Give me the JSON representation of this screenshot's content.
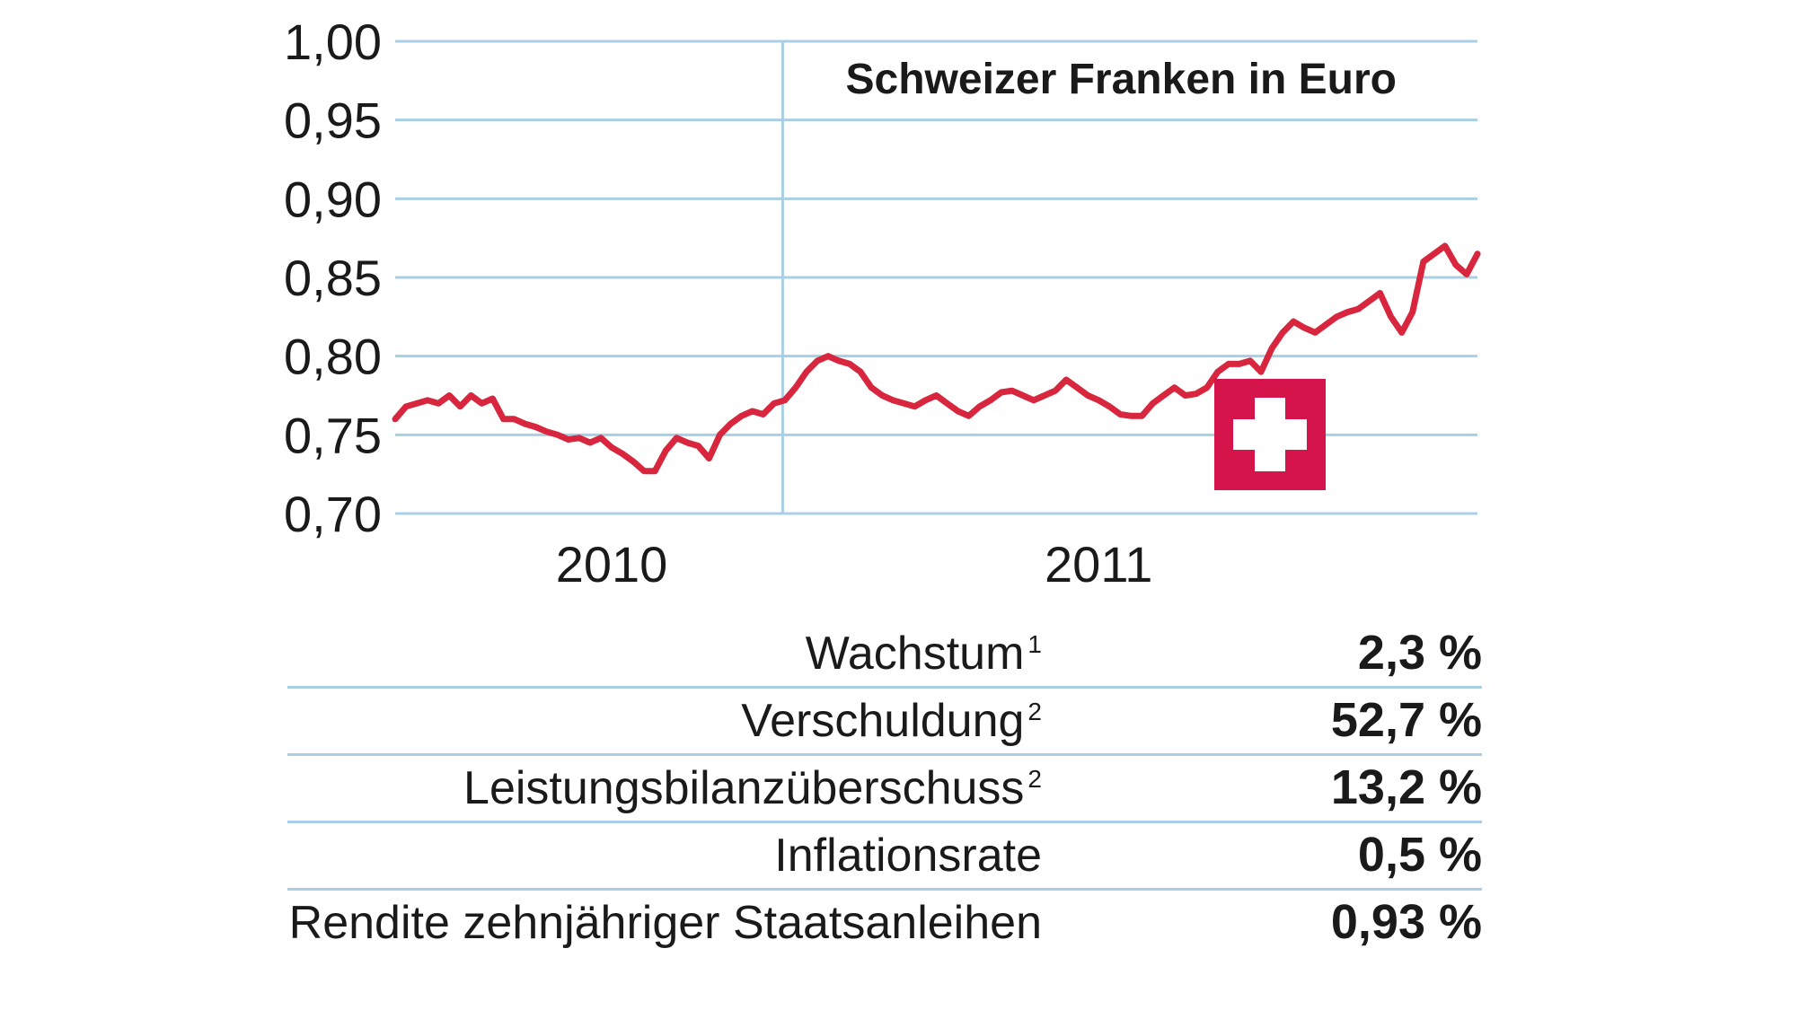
{
  "chart_data": {
    "type": "line",
    "title": "Schweizer Franken in Euro",
    "xlabel": "",
    "ylabel": "",
    "ylim": [
      0.7,
      1.0
    ],
    "yticks": [
      "1,00",
      "0,95",
      "0,90",
      "0,85",
      "0,80",
      "0,75",
      "0,70"
    ],
    "ytick_values": [
      1.0,
      0.95,
      0.9,
      0.85,
      0.8,
      0.75,
      0.7
    ],
    "x_tick_labels": [
      "2010",
      "2011"
    ],
    "x_range": [
      0,
      1
    ],
    "x_tick_label_positions": [
      0.2,
      0.65
    ],
    "year_divider_at": 0.358,
    "series": [
      {
        "name": "Schweizer Franken in Euro",
        "color": "#d7263d",
        "x": [
          0,
          0.01,
          0.02,
          0.03,
          0.04,
          0.05,
          0.06,
          0.07,
          0.08,
          0.09,
          0.1,
          0.11,
          0.12,
          0.13,
          0.14,
          0.15,
          0.16,
          0.17,
          0.18,
          0.19,
          0.2,
          0.21,
          0.22,
          0.23,
          0.24,
          0.25,
          0.26,
          0.27,
          0.28,
          0.29,
          0.3,
          0.31,
          0.32,
          0.33,
          0.34,
          0.35,
          0.36,
          0.37,
          0.38,
          0.39,
          0.4,
          0.41,
          0.42,
          0.43,
          0.44,
          0.45,
          0.46,
          0.47,
          0.48,
          0.49,
          0.5,
          0.51,
          0.52,
          0.53,
          0.54,
          0.55,
          0.56,
          0.57,
          0.58,
          0.59,
          0.6,
          0.61,
          0.62,
          0.63,
          0.64,
          0.65,
          0.66,
          0.67,
          0.68,
          0.69,
          0.7,
          0.71,
          0.72,
          0.73,
          0.74,
          0.75,
          0.76,
          0.77,
          0.78,
          0.79,
          0.8,
          0.81,
          0.82,
          0.83,
          0.84,
          0.85,
          0.86,
          0.87,
          0.88,
          0.89,
          0.9,
          0.91,
          0.92,
          0.93,
          0.94,
          0.95,
          0.96,
          0.97,
          0.98,
          0.99,
          1.0
        ],
        "values": [
          0.76,
          0.768,
          0.77,
          0.772,
          0.77,
          0.775,
          0.768,
          0.775,
          0.77,
          0.773,
          0.76,
          0.76,
          0.757,
          0.755,
          0.752,
          0.75,
          0.747,
          0.748,
          0.745,
          0.748,
          0.742,
          0.738,
          0.733,
          0.727,
          0.727,
          0.74,
          0.748,
          0.745,
          0.743,
          0.735,
          0.75,
          0.757,
          0.762,
          0.765,
          0.763,
          0.77,
          0.772,
          0.78,
          0.79,
          0.797,
          0.8,
          0.797,
          0.795,
          0.79,
          0.78,
          0.775,
          0.772,
          0.77,
          0.768,
          0.772,
          0.775,
          0.77,
          0.765,
          0.762,
          0.768,
          0.772,
          0.777,
          0.778,
          0.775,
          0.772,
          0.775,
          0.778,
          0.785,
          0.78,
          0.775,
          0.772,
          0.768,
          0.763,
          0.762,
          0.762,
          0.77,
          0.775,
          0.78,
          0.775,
          0.776,
          0.78,
          0.79,
          0.795,
          0.795,
          0.797,
          0.79,
          0.805,
          0.815,
          0.822,
          0.818,
          0.815,
          0.82,
          0.825,
          0.828,
          0.83,
          0.835,
          0.84,
          0.825,
          0.815,
          0.828,
          0.86,
          0.865,
          0.87,
          0.858,
          0.852,
          0.865
        ]
      }
    ]
  },
  "stats": {
    "rows": [
      {
        "label": "Wachstum",
        "sup": "1",
        "value": "2,3 %"
      },
      {
        "label": "Verschuldung",
        "sup": "2",
        "value": "52,7 %"
      },
      {
        "label": "Leistungsbilanzüberschuss",
        "sup": "2",
        "value": "13,2 %"
      },
      {
        "label": "Inflationsrate",
        "sup": "",
        "value": "0,5 %"
      },
      {
        "label": "Rendite zehnjähriger Staatsanleihen",
        "sup": "",
        "value": "0,93 %"
      }
    ]
  },
  "colors": {
    "line": "#d7263d",
    "grid": "#a9cfe4",
    "flag_red": "#d4144a",
    "flag_cross": "#ffffff"
  },
  "icons": {
    "flag": "swiss-flag-icon"
  }
}
